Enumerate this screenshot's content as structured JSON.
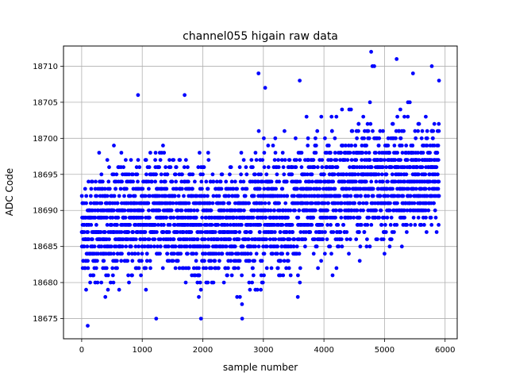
{
  "chart_data": {
    "type": "scatter",
    "title": "channel055 higain raw data",
    "xlabel": "sample number",
    "ylabel": "ADC Code",
    "xlim": [
      -300,
      6200
    ],
    "ylim": [
      18672.2,
      18712.8
    ],
    "xticks": [
      0,
      1000,
      2000,
      3000,
      4000,
      5000,
      6000
    ],
    "yticks": [
      18675,
      18680,
      18685,
      18690,
      18695,
      18700,
      18705,
      18710
    ],
    "xtick_labels": [
      "0",
      "1000",
      "2000",
      "3000",
      "4000",
      "5000",
      "6000"
    ],
    "ytick_labels": [
      "18675",
      "18680",
      "18685",
      "18690",
      "18695",
      "18700",
      "18705",
      "18710"
    ],
    "grid": true,
    "marker_color": "#0000ff",
    "envelope": [
      {
        "x": 0,
        "y_min": 18676,
        "y_max": 18697
      },
      {
        "x": 500,
        "y_min": 18677,
        "y_max": 18700
      },
      {
        "x": 1000,
        "y_min": 18677,
        "y_max": 18701
      },
      {
        "x": 1500,
        "y_min": 18678,
        "y_max": 18701
      },
      {
        "x": 2000,
        "y_min": 18676,
        "y_max": 18700
      },
      {
        "x": 2500,
        "y_min": 18676,
        "y_max": 18700
      },
      {
        "x": 3000,
        "y_min": 18676,
        "y_max": 18703
      },
      {
        "x": 3500,
        "y_min": 18677,
        "y_max": 18703
      },
      {
        "x": 4000,
        "y_min": 18679,
        "y_max": 18705
      },
      {
        "x": 4500,
        "y_min": 18681,
        "y_max": 18707
      },
      {
        "x": 5000,
        "y_min": 18681,
        "y_max": 18707
      },
      {
        "x": 5500,
        "y_min": 18683,
        "y_max": 18706
      },
      {
        "x": 5900,
        "y_min": 18684,
        "y_max": 18706
      }
    ],
    "notable_points": [
      {
        "x": 100,
        "y": 18674
      },
      {
        "x": 1230,
        "y": 18675
      },
      {
        "x": 1970,
        "y": 18675
      },
      {
        "x": 2650,
        "y": 18675
      },
      {
        "x": 930,
        "y": 18706
      },
      {
        "x": 1700,
        "y": 18706
      },
      {
        "x": 2920,
        "y": 18709
      },
      {
        "x": 3030,
        "y": 18707
      },
      {
        "x": 3600,
        "y": 18708
      },
      {
        "x": 4780,
        "y": 18712
      },
      {
        "x": 4800,
        "y": 18710
      },
      {
        "x": 4830,
        "y": 18710
      },
      {
        "x": 5200,
        "y": 18711
      },
      {
        "x": 5470,
        "y": 18709
      },
      {
        "x": 5780,
        "y": 18710
      },
      {
        "x": 5900,
        "y": 18708
      }
    ]
  }
}
